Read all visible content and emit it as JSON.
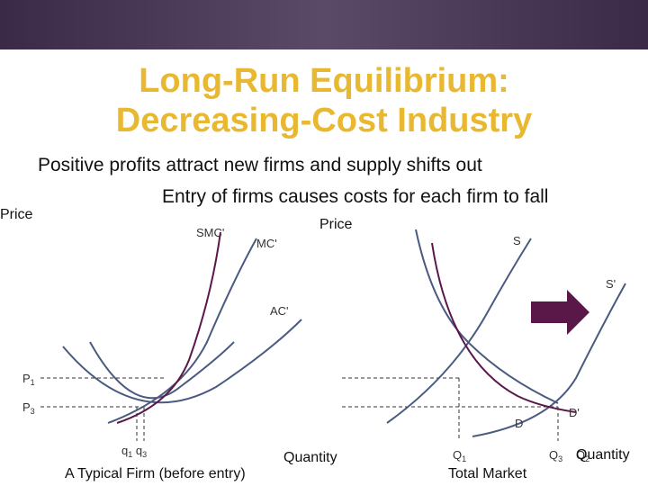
{
  "header": {
    "title_lines": [
      "Long-Run Equilibrium:",
      "Decreasing-Cost Industry"
    ]
  },
  "bullets": [
    "Positive profits attract new firms and supply shifts out",
    "Entry of firms causes costs for each firm to fall"
  ],
  "firm_panel": {
    "y_label": "Price",
    "curves": [
      "SMC'",
      "MC'",
      "AC'"
    ],
    "prices": [
      {
        "letter": "P",
        "sub": "1"
      },
      {
        "letter": "P",
        "sub": "3"
      }
    ],
    "quantities": [
      {
        "letter": "q",
        "sub": "1"
      },
      {
        "letter": "q",
        "sub": "3"
      }
    ],
    "x_label": "Quantity",
    "caption": "A Typical Firm (before entry)"
  },
  "market_panel": {
    "y_label": "Price",
    "curves": [
      "S",
      "S'",
      "D",
      "D'"
    ],
    "quantities": [
      {
        "letter": "Q",
        "sub": "1"
      },
      {
        "letter": "Q",
        "sub": "3"
      },
      {
        "letter": "Q",
        "sub": "2"
      }
    ],
    "x_label": "Quantity",
    "caption": "Total Market"
  }
}
